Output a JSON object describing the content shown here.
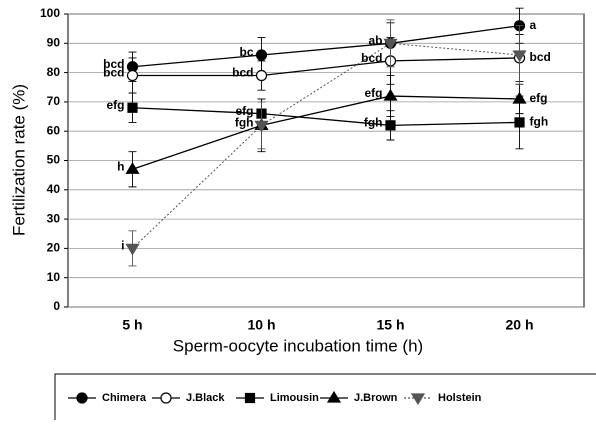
{
  "chart_data": {
    "type": "line",
    "xlabel": "Sperm-oocyte incubation time (h)",
    "ylabel": "Fertilization rate (%)",
    "categories": [
      "5 h",
      "10 h",
      "15 h",
      "20 h"
    ],
    "ylim": [
      0,
      100
    ],
    "yticks": [
      0,
      10,
      20,
      30,
      40,
      50,
      60,
      70,
      80,
      90,
      100
    ],
    "grid": true,
    "series": [
      {
        "name": "Chimera",
        "color": "#000000",
        "marker": "circle",
        "values": [
          82,
          86,
          90,
          96
        ],
        "errors": [
          5,
          6,
          7,
          6
        ],
        "letters": [
          "bcd",
          "bc",
          "ab",
          "a"
        ]
      },
      {
        "name": "J.Black",
        "color": "#000000",
        "marker": "open-circle",
        "values": [
          79,
          79,
          84,
          85
        ],
        "errors": [
          6,
          5,
          8,
          8
        ],
        "letters": [
          "bcd",
          "bcd",
          "bcd",
          "bcd"
        ]
      },
      {
        "name": "Limousin",
        "color": "#000000",
        "marker": "square",
        "values": [
          68,
          66,
          62,
          63
        ],
        "errors": [
          5,
          5,
          5,
          9
        ],
        "letters": [
          "efg",
          "efg",
          "fgh",
          "fgh"
        ]
      },
      {
        "name": "J.Brown",
        "color": "#000000",
        "marker": "triangle",
        "values": [
          47,
          62,
          72,
          71
        ],
        "errors": [
          6,
          9,
          7,
          5
        ],
        "letters": [
          "h",
          "fgh",
          "efg",
          "efg"
        ]
      },
      {
        "name": "Holstein",
        "color": "#555555",
        "marker": "down-triangle",
        "dashed": true,
        "values": [
          20,
          62,
          90,
          86
        ],
        "errors": [
          6,
          8,
          8,
          10
        ],
        "letters": [
          "i",
          null,
          null,
          null
        ]
      }
    ]
  }
}
